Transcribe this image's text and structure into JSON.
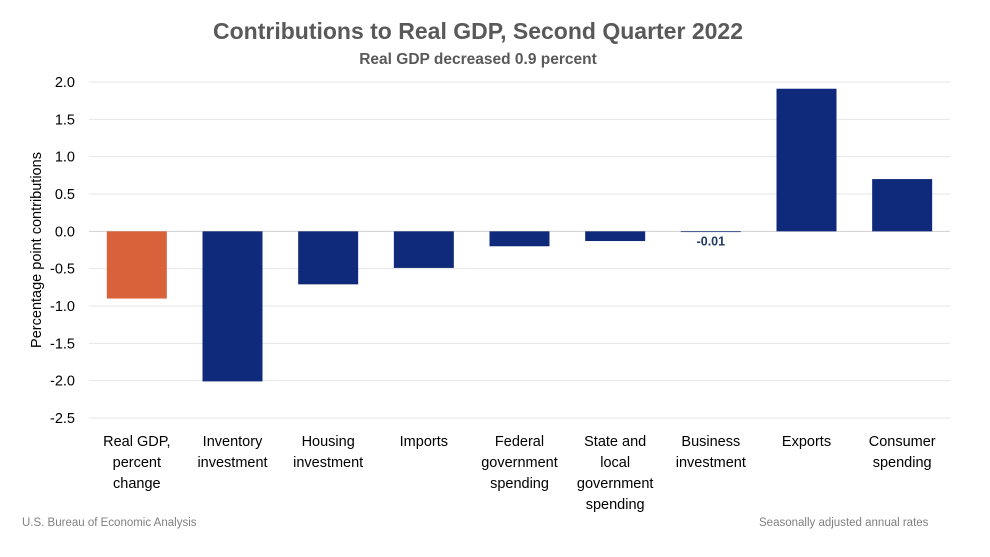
{
  "chart_data": {
    "type": "bar",
    "title": "Contributions to Real GDP, Second Quarter 2022",
    "subtitle": "Real GDP decreased 0.9 percent",
    "ylabel": "Percentage point contributions",
    "xlabel": "",
    "ylim": [
      -2.5,
      2.0
    ],
    "yticks": [
      "2.0",
      "1.5",
      "1.0",
      "0.5",
      "0.0",
      "-0.5",
      "-1.0",
      "-1.5",
      "-2.0",
      "-2.5"
    ],
    "ytick_values": [
      2.0,
      1.5,
      1.0,
      0.5,
      0.0,
      -0.5,
      -1.0,
      -1.5,
      -2.0,
      -2.5
    ],
    "grid": true,
    "categories": [
      [
        "Real GDP,",
        "percent",
        "change"
      ],
      [
        "Inventory",
        "investment"
      ],
      [
        "Housing",
        "investment"
      ],
      [
        "Imports"
      ],
      [
        "Federal",
        "government",
        "spending"
      ],
      [
        "State and",
        "local",
        "government",
        "spending"
      ],
      [
        "Business",
        "investment"
      ],
      [
        "Exports"
      ],
      [
        "Consumer",
        "spending"
      ]
    ],
    "values": [
      -0.9,
      -2.01,
      -0.71,
      -0.49,
      -0.2,
      -0.13,
      -0.01,
      1.91,
      0.7
    ],
    "bar_colors": [
      "#d9623b",
      "#0f2a7a",
      "#0f2a7a",
      "#0f2a7a",
      "#0f2a7a",
      "#0f2a7a",
      "#0f2a7a",
      "#0f2a7a",
      "#0f2a7a"
    ],
    "data_labels": [
      null,
      null,
      null,
      null,
      null,
      null,
      "-0.01",
      null,
      null
    ],
    "data_label_color": "#1f3864"
  },
  "footer": {
    "source": "U.S. Bureau of Economic Analysis",
    "note": "Seasonally adjusted annual rates"
  }
}
